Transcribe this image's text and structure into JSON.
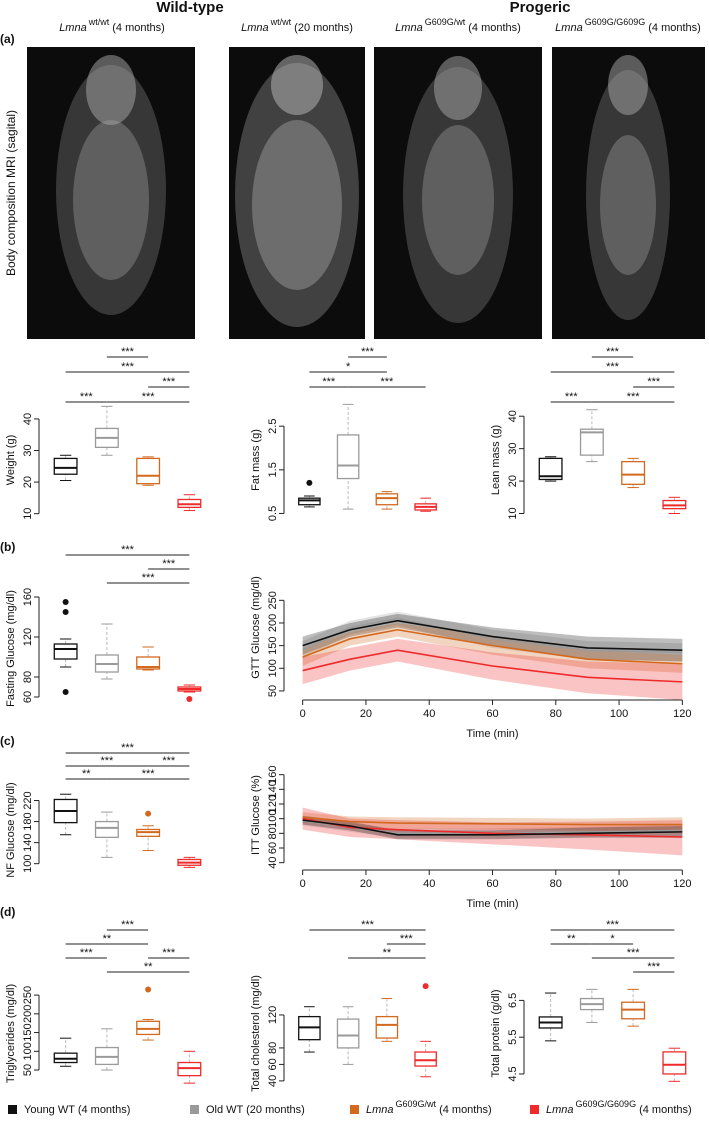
{
  "header": {
    "left": "Wild-type",
    "right": "Progeric"
  },
  "panels": [
    "(a)",
    "(b)",
    "(c)",
    "(d)"
  ],
  "mri_label": "Body composition MRI (sagital)",
  "images": [
    {
      "gene": "Lmna",
      "genotype": "wt/wt",
      "age": "(4 months)"
    },
    {
      "gene": "Lmna",
      "genotype": "wt/wt",
      "age": "(20 months)"
    },
    {
      "gene": "Lmna",
      "genotype": "G609G/wt",
      "age": "(4 months)"
    },
    {
      "gene": "Lmna",
      "genotype": "G609G/G609G",
      "age": "(4 months)"
    }
  ],
  "legend": [
    {
      "color": "#111111",
      "text": "Young WT (4 months)"
    },
    {
      "color": "#9a9a9a",
      "text": "Old WT (20 months)"
    },
    {
      "color": "#d2691e",
      "gene": "Lmna",
      "genotype": "G609G/wt",
      "age": "(4 months)"
    },
    {
      "color": "#ee2a2a",
      "gene": "Lmna",
      "genotype": "G609G/G609G",
      "age": "(4 months)"
    }
  ],
  "chart_data": [
    {
      "type": "box",
      "ylabel": "Weight (g)",
      "ylim": [
        8,
        46
      ],
      "yticks": [
        10,
        20,
        30,
        40
      ],
      "boxes": [
        {
          "min": 20.5,
          "q1": 22.5,
          "median": 24.5,
          "q3": 27.5,
          "max": 28.5,
          "outliers": []
        },
        {
          "min": 28.5,
          "q1": 31,
          "median": 34,
          "q3": 37,
          "max": 44,
          "outliers": []
        },
        {
          "min": 19,
          "q1": 19.5,
          "median": 22,
          "q3": 27.5,
          "max": 28,
          "outliers": []
        },
        {
          "min": 11,
          "q1": 12,
          "median": 13,
          "q3": 14.5,
          "max": 16,
          "outliers": []
        }
      ],
      "significance": [
        "***",
        "***",
        "***",
        "***",
        "***"
      ]
    },
    {
      "type": "box",
      "ylabel": "Fat mass (g)",
      "ylim": [
        0.35,
        3.1
      ],
      "yticks": [
        0.5,
        1.5,
        2.5
      ],
      "boxes": [
        {
          "min": 0.65,
          "q1": 0.7,
          "median": 0.8,
          "q3": 0.85,
          "max": 0.9,
          "outliers": [
            1.2
          ]
        },
        {
          "min": 0.6,
          "q1": 1.3,
          "median": 1.6,
          "q3": 2.3,
          "max": 3.0,
          "outliers": []
        },
        {
          "min": 0.6,
          "q1": 0.7,
          "median": 0.85,
          "q3": 0.95,
          "max": 1.0,
          "outliers": []
        },
        {
          "min": 0.55,
          "q1": 0.58,
          "median": 0.65,
          "q3": 0.72,
          "max": 0.85,
          "outliers": []
        }
      ],
      "significance": [
        "***",
        "*",
        "***",
        "***"
      ]
    },
    {
      "type": "box",
      "ylabel": "Lean mass (g)",
      "ylim": [
        8,
        45
      ],
      "yticks": [
        10,
        20,
        30,
        40
      ],
      "boxes": [
        {
          "min": 20,
          "q1": 20.5,
          "median": 21.5,
          "q3": 27,
          "max": 27.5,
          "outliers": []
        },
        {
          "min": 26,
          "q1": 28,
          "median": 35,
          "q3": 36,
          "max": 42,
          "outliers": []
        },
        {
          "min": 18,
          "q1": 19,
          "median": 22,
          "q3": 26,
          "max": 27,
          "outliers": []
        },
        {
          "min": 10,
          "q1": 11.5,
          "median": 12.5,
          "q3": 14,
          "max": 15,
          "outliers": []
        }
      ],
      "significance": [
        "***",
        "***",
        "***",
        "***",
        "***"
      ]
    },
    {
      "type": "box",
      "ylabel": "Fasting Glucose (mg/dl)",
      "ylim": [
        52,
        165
      ],
      "yticks": [
        60,
        80,
        120,
        160
      ],
      "boxes": [
        {
          "min": 90,
          "q1": 98,
          "median": 108,
          "q3": 113,
          "max": 118,
          "outliers": [
            145,
            155,
            65
          ]
        },
        {
          "min": 78,
          "q1": 85,
          "median": 93,
          "q3": 102,
          "max": 133,
          "outliers": []
        },
        {
          "min": 87,
          "q1": 88,
          "median": 90,
          "q3": 100,
          "max": 110,
          "outliers": []
        },
        {
          "min": 65,
          "q1": 66,
          "median": 68,
          "q3": 70,
          "max": 72,
          "outliers": [
            58
          ]
        }
      ],
      "significance": [
        "***",
        "***",
        "***"
      ]
    },
    {
      "type": "line",
      "ylabel": "GTT Glucose (mg/dl)",
      "xlabel": "Time (min)",
      "x": [
        0,
        15,
        30,
        60,
        90,
        120
      ],
      "xlim": [
        -4,
        124
      ],
      "xticks": [
        0,
        20,
        40,
        60,
        80,
        100,
        120
      ],
      "ylim": [
        30,
        350
      ],
      "yticks": [
        50,
        100,
        150,
        200,
        250
      ],
      "series": [
        {
          "color": "#9a9a9a",
          "values": [
            140,
            190,
            210,
            165,
            140,
            135
          ],
          "lower": [
            120,
            175,
            195,
            145,
            120,
            115
          ],
          "upper": [
            160,
            205,
            225,
            185,
            160,
            155
          ]
        },
        {
          "color": "#111111",
          "values": [
            150,
            185,
            205,
            170,
            145,
            140
          ],
          "lower": [
            130,
            170,
            190,
            150,
            120,
            115
          ],
          "upper": [
            170,
            200,
            220,
            190,
            170,
            165
          ]
        },
        {
          "color": "#d2691e",
          "values": [
            125,
            165,
            185,
            150,
            120,
            110
          ],
          "lower": [
            105,
            150,
            170,
            130,
            100,
            90
          ],
          "upper": [
            145,
            180,
            200,
            170,
            140,
            130
          ]
        },
        {
          "color": "#ee2a2a",
          "values": [
            95,
            120,
            140,
            105,
            80,
            70
          ],
          "lower": [
            65,
            95,
            115,
            75,
            45,
            30
          ],
          "upper": [
            125,
            145,
            165,
            135,
            115,
            110
          ]
        }
      ]
    },
    {
      "type": "box",
      "ylabel": "NF Glucose (mg/dl)",
      "ylim": [
        88,
        240
      ],
      "yticks": [
        100,
        140,
        180,
        220
      ],
      "boxes": [
        {
          "min": 155,
          "q1": 178,
          "median": 200,
          "q3": 222,
          "max": 232,
          "outliers": []
        },
        {
          "min": 112,
          "q1": 150,
          "median": 168,
          "q3": 180,
          "max": 198,
          "outliers": []
        },
        {
          "min": 125,
          "q1": 152,
          "median": 160,
          "q3": 165,
          "max": 172,
          "outliers": [
            195
          ]
        },
        {
          "min": 93,
          "q1": 97,
          "median": 102,
          "q3": 108,
          "max": 112,
          "outliers": []
        }
      ],
      "significance": [
        "***",
        "***",
        "***",
        "**",
        "***"
      ]
    },
    {
      "type": "line",
      "ylabel": "ITT Glucose (%)",
      "xlabel": "Time (min)",
      "x": [
        0,
        15,
        30,
        60,
        90,
        120
      ],
      "xlim": [
        -4,
        124
      ],
      "xticks": [
        0,
        20,
        40,
        60,
        80,
        100,
        120
      ],
      "ylim": [
        30,
        180
      ],
      "yticks": [
        40,
        60,
        80,
        100,
        120,
        140,
        160
      ],
      "series": [
        {
          "color": "#9a9a9a",
          "values": [
            97,
            88,
            80,
            80,
            82,
            84
          ],
          "lower": [
            91,
            82,
            74,
            73,
            75,
            76
          ],
          "upper": [
            103,
            94,
            86,
            87,
            89,
            92
          ]
        },
        {
          "color": "#d2691e",
          "values": [
            102,
            96,
            94,
            93,
            92,
            92
          ],
          "lower": [
            95,
            89,
            86,
            85,
            84,
            82
          ],
          "upper": [
            109,
            103,
            102,
            101,
            100,
            102
          ]
        },
        {
          "color": "#ee2a2a",
          "values": [
            100,
            88,
            85,
            80,
            78,
            75
          ],
          "lower": [
            85,
            75,
            72,
            65,
            58,
            50
          ],
          "upper": [
            115,
            100,
            98,
            95,
            96,
            98
          ]
        },
        {
          "color": "#111111",
          "values": [
            98,
            90,
            78,
            78,
            80,
            82
          ],
          "lower": [
            92,
            84,
            72,
            72,
            74,
            74
          ],
          "upper": [
            104,
            96,
            84,
            84,
            88,
            90
          ]
        }
      ]
    },
    {
      "type": "box",
      "ylabel": "Triglycerides (mg/dl)",
      "ylim": [
        10,
        285
      ],
      "yticks": [
        50,
        100,
        150,
        200,
        250
      ],
      "boxes": [
        {
          "min": 60,
          "q1": 70,
          "median": 80,
          "q3": 95,
          "max": 135,
          "outliers": []
        },
        {
          "min": 50,
          "q1": 65,
          "median": 85,
          "q3": 110,
          "max": 160,
          "outliers": []
        },
        {
          "min": 130,
          "q1": 145,
          "median": 160,
          "q3": 180,
          "max": 185,
          "outliers": [
            265
          ]
        },
        {
          "min": 15,
          "q1": 35,
          "median": 55,
          "q3": 70,
          "max": 100,
          "outliers": []
        }
      ],
      "significance": [
        "***",
        "**",
        "***",
        "***",
        "**"
      ]
    },
    {
      "type": "box",
      "ylabel": "Total cholesterol (mg/dl)",
      "ylim": [
        35,
        160
      ],
      "yticks": [
        40,
        60,
        80,
        120
      ],
      "boxes": [
        {
          "min": 75,
          "q1": 90,
          "median": 105,
          "q3": 118,
          "max": 130,
          "outliers": []
        },
        {
          "min": 60,
          "q1": 80,
          "median": 95,
          "q3": 115,
          "max": 130,
          "outliers": []
        },
        {
          "min": 88,
          "q1": 92,
          "median": 108,
          "q3": 118,
          "max": 140,
          "outliers": []
        },
        {
          "min": 45,
          "q1": 58,
          "median": 65,
          "q3": 75,
          "max": 88,
          "outliers": [
            155
          ]
        }
      ],
      "significance": [
        "***",
        "***",
        "**"
      ]
    },
    {
      "type": "box",
      "ylabel": "Total protein (g/dl)",
      "ylim": [
        4.2,
        7.0
      ],
      "yticks": [
        4.5,
        5.5,
        6.5
      ],
      "boxes": [
        {
          "min": 5.4,
          "q1": 5.75,
          "median": 5.9,
          "q3": 6.05,
          "max": 6.7,
          "outliers": []
        },
        {
          "min": 5.9,
          "q1": 6.25,
          "median": 6.4,
          "q3": 6.55,
          "max": 6.8,
          "outliers": []
        },
        {
          "min": 5.8,
          "q1": 6.0,
          "median": 6.25,
          "q3": 6.45,
          "max": 6.8,
          "outliers": []
        },
        {
          "min": 4.3,
          "q1": 4.5,
          "median": 4.75,
          "q3": 5.1,
          "max": 5.2,
          "outliers": []
        }
      ],
      "significance": [
        "***",
        "**",
        "*",
        "***",
        "***"
      ]
    }
  ]
}
